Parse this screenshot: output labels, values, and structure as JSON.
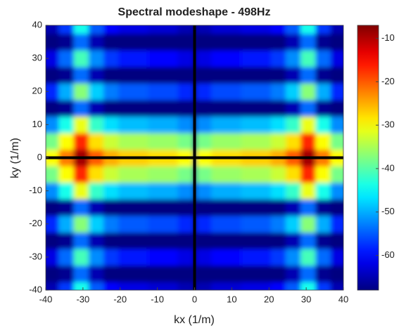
{
  "chart_data": {
    "type": "heatmap",
    "title": "Spectral modeshape - 498Hz",
    "x_label": "kx (1/m)",
    "y_label": "ky (1/m)",
    "xlim": [
      -40,
      40
    ],
    "ylim": [
      -40,
      40
    ],
    "xticks": [
      -40,
      -30,
      -20,
      -10,
      0,
      10,
      20,
      30,
      40
    ],
    "yticks": [
      -40,
      -30,
      -20,
      -10,
      0,
      10,
      20,
      30,
      40
    ],
    "x": [
      -38.5,
      -34.5,
      -30.5,
      -26.5,
      -22.5,
      -18.5,
      -14.5,
      -10.5,
      -6.5,
      -2.5,
      2.5,
      6.5,
      10.5,
      14.5,
      18.5,
      22.5,
      26.5,
      30.5,
      34.5,
      38.5
    ],
    "y": [
      -40,
      -35,
      -30,
      -25,
      -20,
      -15,
      -10,
      -5,
      0,
      5,
      10,
      15,
      20,
      25,
      30,
      35,
      40
    ],
    "x_cell": 4,
    "y_cell": 5,
    "z": [
      [
        -65,
        -57,
        -44,
        -55,
        -60,
        -62,
        -62,
        -63,
        -63,
        -65,
        -65,
        -63,
        -63,
        -62,
        -62,
        -60,
        -55,
        -44,
        -57,
        -65
      ],
      [
        -68,
        -67,
        -54,
        -65,
        -68,
        -68,
        -68,
        -68,
        -68,
        -68,
        -68,
        -68,
        -68,
        -68,
        -68,
        -68,
        -65,
        -54,
        -67,
        -68
      ],
      [
        -62,
        -54,
        -41,
        -52,
        -57,
        -59,
        -59,
        -60,
        -60,
        -62,
        -62,
        -60,
        -60,
        -59,
        -59,
        -57,
        -52,
        -41,
        -54,
        -62
      ],
      [
        -68,
        -67,
        -54,
        -65,
        -68,
        -68,
        -68,
        -68,
        -68,
        -68,
        -68,
        -68,
        -68,
        -68,
        -68,
        -68,
        -65,
        -54,
        -67,
        -68
      ],
      [
        -58,
        -50,
        -37,
        -48,
        -53,
        -55,
        -55,
        -56,
        -56,
        -58,
        -58,
        -56,
        -56,
        -55,
        -55,
        -53,
        -48,
        -37,
        -50,
        -58
      ],
      [
        -68,
        -67,
        -54,
        -65,
        -68,
        -68,
        -68,
        -68,
        -68,
        -68,
        -68,
        -68,
        -68,
        -68,
        -68,
        -68,
        -65,
        -54,
        -67,
        -68
      ],
      [
        -52,
        -44,
        -31,
        -42,
        -47,
        -49,
        -49,
        -50,
        -50,
        -52,
        -52,
        -50,
        -50,
        -49,
        -49,
        -47,
        -42,
        -31,
        -44,
        -52
      ],
      [
        -38,
        -30,
        -17,
        -28,
        -33,
        -35,
        -35,
        -36,
        -36,
        -38,
        -38,
        -36,
        -36,
        -35,
        -35,
        -33,
        -28,
        -17,
        -30,
        -38
      ],
      [
        -30,
        -22,
        -9,
        -20,
        -25,
        -27,
        -27,
        -28,
        -28,
        -30,
        -30,
        -28,
        -28,
        -27,
        -27,
        -25,
        -20,
        -9,
        -22,
        -30
      ],
      [
        -38,
        -30,
        -17,
        -28,
        -33,
        -35,
        -35,
        -36,
        -36,
        -38,
        -38,
        -36,
        -36,
        -35,
        -35,
        -33,
        -28,
        -17,
        -30,
        -38
      ],
      [
        -52,
        -44,
        -31,
        -42,
        -47,
        -49,
        -49,
        -50,
        -50,
        -52,
        -52,
        -50,
        -50,
        -49,
        -49,
        -47,
        -42,
        -31,
        -44,
        -52
      ],
      [
        -68,
        -67,
        -54,
        -65,
        -68,
        -68,
        -68,
        -68,
        -68,
        -68,
        -68,
        -68,
        -68,
        -68,
        -68,
        -68,
        -65,
        -54,
        -67,
        -68
      ],
      [
        -58,
        -50,
        -37,
        -48,
        -53,
        -55,
        -55,
        -56,
        -56,
        -58,
        -58,
        -56,
        -56,
        -55,
        -55,
        -53,
        -48,
        -37,
        -50,
        -58
      ],
      [
        -68,
        -67,
        -54,
        -65,
        -68,
        -68,
        -68,
        -68,
        -68,
        -68,
        -68,
        -68,
        -68,
        -68,
        -68,
        -68,
        -65,
        -54,
        -67,
        -68
      ],
      [
        -62,
        -54,
        -41,
        -52,
        -57,
        -59,
        -59,
        -60,
        -60,
        -62,
        -62,
        -60,
        -60,
        -59,
        -59,
        -57,
        -52,
        -41,
        -54,
        -62
      ],
      [
        -68,
        -67,
        -54,
        -65,
        -68,
        -68,
        -68,
        -68,
        -68,
        -68,
        -68,
        -68,
        -68,
        -68,
        -68,
        -68,
        -65,
        -54,
        -67,
        -68
      ],
      [
        -65,
        -57,
        -44,
        -55,
        -60,
        -62,
        -62,
        -63,
        -63,
        -65,
        -65,
        -63,
        -63,
        -62,
        -62,
        -60,
        -55,
        -44,
        -57,
        -65
      ]
    ],
    "clim": [
      -68,
      -7
    ],
    "cticks": [
      -60,
      -50,
      -40,
      -30,
      -20,
      -10
    ],
    "colormap": "jet",
    "vlines": [
      0
    ],
    "hlines": [
      0
    ]
  }
}
